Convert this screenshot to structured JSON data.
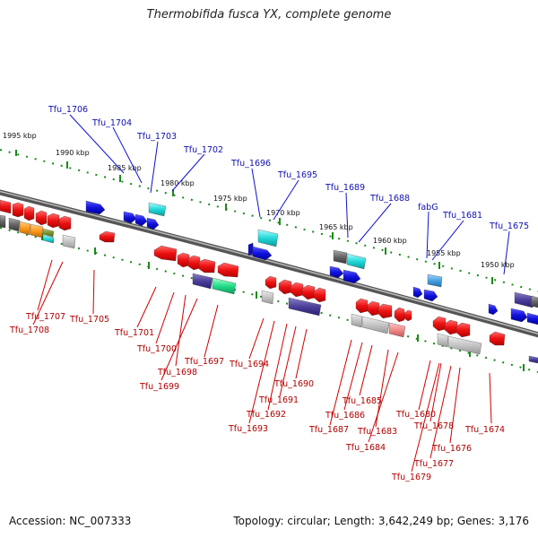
{
  "title": "Thermobifida fusca YX, complete genome",
  "accession": "Accession: NC_007333",
  "summary": "Topology: circular; Length: 3,642,249 bp; Genes: 3,176",
  "colors": {
    "backbone": "#777777",
    "ticks": "#1a8a1a",
    "forward_label": "#1010b0",
    "reverse_label": "#b00000"
  },
  "kbp_labels": [
    "1995 kbp",
    "1990 kbp",
    "1985 kbp",
    "1980 kbp",
    "1975 kbp",
    "1970 kbp",
    "1965 kbp",
    "1960 kbp",
    "1955 kbp",
    "1950 kbp"
  ],
  "forward_genes": [
    "Tfu_1706",
    "Tfu_1704",
    "Tfu_1703",
    "Tfu_1702",
    "Tfu_1696",
    "Tfu_1695",
    "Tfu_1689",
    "Tfu_1688",
    "fabG",
    "Tfu_1681",
    "Tfu_1675"
  ],
  "reverse_genes": [
    "Tfu_1707",
    "Tfu_1708",
    "Tfu_1705",
    "Tfu_1701",
    "Tfu_1700",
    "Tfu_1698",
    "Tfu_1699",
    "Tfu_1697",
    "Tfu_1694",
    "Tfu_1690",
    "Tfu_1691",
    "Tfu_1692",
    "Tfu_1693",
    "Tfu_1685",
    "Tfu_1686",
    "Tfu_1687",
    "Tfu_1683",
    "Tfu_1684",
    "Tfu_1680",
    "Tfu_1678",
    "Tfu_1676",
    "Tfu_1677",
    "Tfu_1679",
    "Tfu_1674"
  ]
}
